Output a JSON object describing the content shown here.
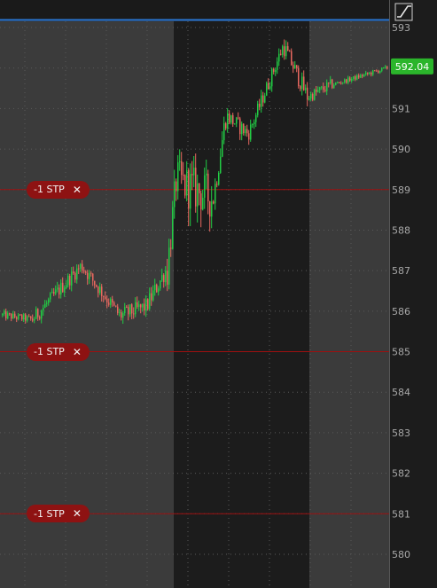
{
  "chart_data": {
    "type": "candlestick",
    "title": "",
    "xlabel": "",
    "ylabel": "",
    "ylim": [
      579.6,
      593.4
    ],
    "y_ticks": [
      "580",
      "581",
      "582",
      "583",
      "584",
      "585",
      "586",
      "587",
      "588",
      "589",
      "590",
      "591",
      "592",
      "593"
    ],
    "last_price": "592.04",
    "grid": true,
    "highlighted_session": "middle shaded band (regular session)",
    "series": [
      {
        "name": "",
        "ohlc_segments": [
          {
            "from": 0,
            "to": 16,
            "start": 585.9,
            "end": 585.8,
            "noise": 0.1
          },
          {
            "from": 17,
            "to": 44,
            "start": 585.8,
            "end": 587.1,
            "noise": 0.18
          },
          {
            "from": 45,
            "to": 66,
            "start": 587.1,
            "end": 585.9,
            "noise": 0.18
          },
          {
            "from": 67,
            "to": 80,
            "start": 585.9,
            "end": 586.1,
            "noise": 0.2
          },
          {
            "from": 81,
            "to": 92,
            "start": 586.1,
            "end": 587.0,
            "noise": 0.22
          },
          {
            "from": 93,
            "to": 98,
            "start": 587.0,
            "end": 589.2,
            "noise": 0.45
          },
          {
            "from": 99,
            "to": 118,
            "start": 589.2,
            "end": 588.8,
            "noise": 0.55
          },
          {
            "from": 119,
            "to": 126,
            "start": 588.8,
            "end": 590.8,
            "noise": 0.3
          },
          {
            "from": 127,
            "to": 138,
            "start": 590.8,
            "end": 590.4,
            "noise": 0.2
          },
          {
            "from": 139,
            "to": 158,
            "start": 590.4,
            "end": 592.5,
            "noise": 0.18
          },
          {
            "from": 159,
            "to": 172,
            "start": 592.5,
            "end": 591.3,
            "noise": 0.22
          },
          {
            "from": 173,
            "to": 186,
            "start": 591.3,
            "end": 591.6,
            "noise": 0.14
          },
          {
            "from": 187,
            "to": 217,
            "start": 591.6,
            "end": 592.0,
            "noise": 0.06
          }
        ],
        "candle_count": 218,
        "up_color": "#22cc44",
        "down_color": "#e8675f"
      }
    ]
  },
  "orders": [
    {
      "label": "-1 STP",
      "price": 589.0,
      "close_glyph": "✕"
    },
    {
      "label": "-1 STP",
      "price": 585.0,
      "close_glyph": "✕"
    },
    {
      "label": "-1 STP",
      "price": 581.0,
      "close_glyph": "✕"
    }
  ],
  "toolbar": {
    "scale_icon": "diagonal-line-icon"
  },
  "colors": {
    "background_outer": "#3b3b3b",
    "background_session": "#1c1c1c",
    "order_line": "#9c1010",
    "order_pill": "#8e1212",
    "price_badge": "#2bb52b",
    "axis_text": "#a8a8a8",
    "grid": "#5a5a5a",
    "top_bar": "#2b78d6"
  }
}
